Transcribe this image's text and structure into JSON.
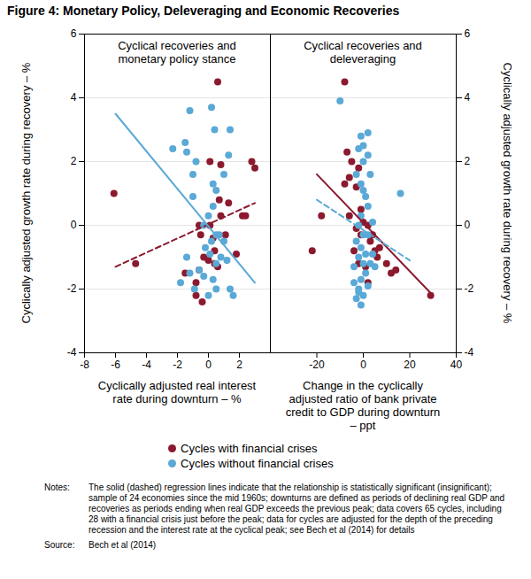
{
  "title": "Figure 4: Monetary Policy, Deleveraging and Economic Recoveries",
  "legend": "bottom",
  "chart_data": [
    {
      "type": "scatter",
      "title": "Cyclical recoveries and monetary policy stance",
      "xlabel": "Cyclically adjusted real interest rate during downturn – %",
      "ylabel": "Cyclically adjusted growth rate during recovery – %",
      "xlim": [
        -8,
        4
      ],
      "xticks": [
        -8,
        -6,
        -4,
        -2,
        0,
        2
      ],
      "ylim": [
        -4,
        6
      ],
      "yticks": [
        -4,
        -2,
        0,
        2,
        4,
        6
      ],
      "grid": "y",
      "series": [
        {
          "name": "Cycles with financial crises",
          "color": "#8b1a2e",
          "marker": "circle",
          "x": [
            -6.1,
            -4.7,
            0.6,
            0.1,
            0.8,
            2.8,
            3.0,
            0.7,
            1.3,
            0.8,
            2.2,
            2.4,
            0.1,
            -0.6,
            -0.5,
            1.1,
            0.3,
            -0.3,
            0.0,
            0.6,
            0.4,
            -0.6,
            -1.5,
            -0.8,
            -0.8,
            -0.4,
            0.4,
            1.8
          ],
          "values": [
            1.0,
            -1.2,
            4.5,
            2.0,
            1.9,
            2.0,
            1.8,
            0.8,
            0.7,
            0.3,
            0.3,
            0.3,
            0.0,
            0.0,
            -0.3,
            -0.3,
            -0.4,
            -1.0,
            -1.1,
            -1.3,
            -1.2,
            -1.4,
            -1.5,
            -1.8,
            -2.2,
            -2.4,
            -0.8,
            -0.9
          ],
          "fit": {
            "x": [
              -6,
              3
            ],
            "values": [
              -1.3,
              0.7
            ],
            "line_style": "dashed"
          }
        },
        {
          "name": "Cycles without financial crises",
          "color": "#5aa9d6",
          "marker": "circle",
          "x": [
            -1.2,
            -1.5,
            -1.4,
            -2.3,
            0.2,
            0.4,
            1.4,
            1.3,
            -0.8,
            -1.0,
            -1.0,
            1.0,
            0.3,
            0.5,
            0.3,
            0.0,
            -0.3,
            0.5,
            0.2,
            0.7,
            1.0,
            0.8,
            1.2,
            -0.2,
            0.5,
            -1.2,
            -0.6,
            -1.8,
            -0.9,
            -0.3,
            0.0,
            0.5,
            1.4,
            1.6,
            0.3,
            -1.4,
            0.1
          ],
          "values": [
            3.6,
            2.6,
            2.3,
            2.4,
            3.7,
            3.0,
            3.0,
            2.2,
            2.0,
            1.6,
            0.9,
            1.6,
            1.3,
            1.1,
            0.6,
            0.3,
            0.0,
            -0.3,
            -0.5,
            -0.3,
            -0.5,
            -1.0,
            -1.1,
            -0.7,
            -1.2,
            -1.5,
            -1.4,
            -1.8,
            -2.0,
            -1.6,
            -2.2,
            -2.0,
            -2.0,
            -2.2,
            -1.7,
            -1.0,
            -0.9
          ],
          "fit": {
            "x": [
              -6,
              3
            ],
            "values": [
              3.5,
              -1.8
            ],
            "line_style": "solid"
          }
        }
      ]
    },
    {
      "type": "scatter",
      "title": "Cyclical recoveries and deleveraging",
      "xlabel": "Change in the cyclically adjusted ratio of bank private credit to GDP during downturn – ppt",
      "ylabel": "Cyclically adjusted growth rate during recovery – %",
      "xlim": [
        -40,
        40
      ],
      "xticks": [
        -20,
        0,
        20,
        40
      ],
      "ylim": [
        -4,
        6
      ],
      "yticks": [
        -4,
        -2,
        0,
        2,
        4,
        6
      ],
      "grid": "y",
      "series": [
        {
          "name": "Cycles with financial crises",
          "color": "#8b1a2e",
          "marker": "circle",
          "x": [
            -8,
            -7,
            -5,
            -6,
            -8,
            -3,
            -2,
            -22,
            -18,
            -6,
            -3,
            -1,
            0,
            2,
            3,
            5,
            4,
            7,
            10,
            12,
            14,
            1,
            -2,
            2,
            29,
            -4,
            6,
            -1
          ],
          "values": [
            4.5,
            2.3,
            2.0,
            1.5,
            1.3,
            1.2,
            1.8,
            -0.8,
            0.3,
            0.3,
            -0.1,
            -0.3,
            0.1,
            0.0,
            -0.5,
            -0.8,
            -0.3,
            -0.7,
            -1.2,
            -1.5,
            -1.4,
            -1.3,
            -1.2,
            -1.8,
            -2.2,
            -0.8,
            -1.0,
            0.5
          ],
          "fit": {
            "x": [
              -20,
              30
            ],
            "values": [
              1.6,
              -2.2
            ],
            "line_style": "solid"
          }
        },
        {
          "name": "Cycles without financial crises",
          "color": "#5aa9d6",
          "marker": "circle",
          "x": [
            -10,
            -1,
            0,
            2,
            2,
            -2,
            0,
            -3,
            -1,
            3,
            0,
            1,
            2,
            -1,
            4,
            16,
            -2,
            0,
            2,
            -3,
            -1,
            1,
            4,
            -4,
            -2,
            0,
            3,
            -1,
            -4,
            -2,
            0,
            2,
            -3,
            -1,
            -2,
            5,
            1
          ],
          "values": [
            3.9,
            2.8,
            2.5,
            2.9,
            2.2,
            2.4,
            2.0,
            1.6,
            1.3,
            1.6,
            1.1,
            0.9,
            0.6,
            0.3,
            0.1,
            1.0,
            0.0,
            -0.3,
            -0.3,
            -0.5,
            -0.7,
            -0.9,
            -0.9,
            -1.3,
            -1.0,
            -1.2,
            -1.2,
            -1.7,
            -1.8,
            -2.0,
            -2.2,
            -1.9,
            -2.3,
            -2.5,
            -2.1,
            -1.3,
            -1.5
          ],
          "fit": {
            "x": [
              -20,
              20
            ],
            "values": [
              0.8,
              -1.1
            ],
            "line_style": "dashed"
          }
        }
      ]
    }
  ],
  "notes_label": "Notes:",
  "notes": "The solid (dashed) regression lines indicate that the relationship is statistically significant (insignificant); sample of 24 economies since the mid 1960s; downturns are defined as periods of declining real GDP and recoveries as periods ending when real GDP exceeds the previous peak; data covers 65 cycles, including 28 with a financial crisis just before the peak; data for cycles are adjusted for the depth of the preceding recession and the interest rate at the cyclical peak; see Bech et al (2014) for details",
  "source_label": "Source:",
  "source": "Bech et al (2014)"
}
